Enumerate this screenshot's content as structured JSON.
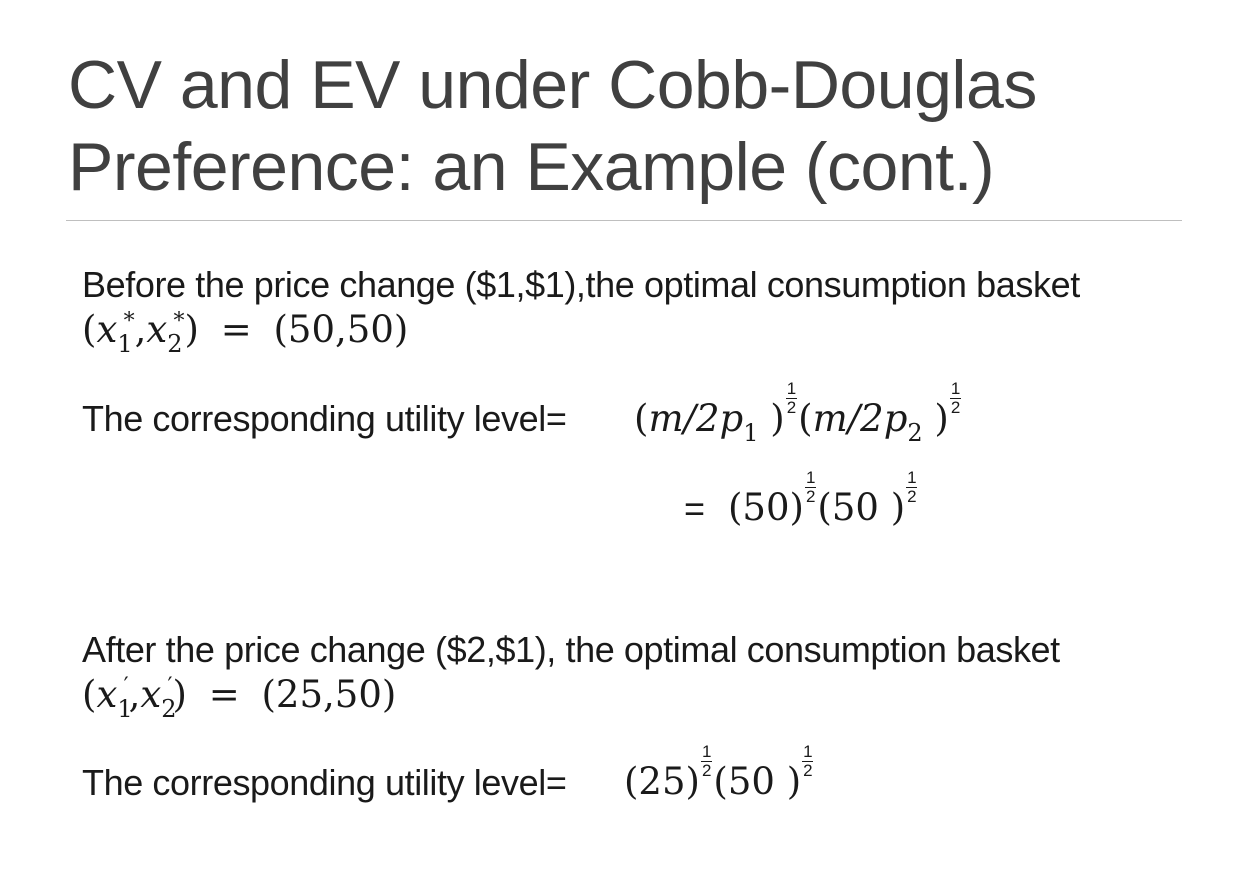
{
  "slide": {
    "title_line1": "CV and EV under Cobb-Douglas",
    "title_line2": "Preference: an Example (cont.)"
  },
  "before": {
    "text": "Before the price change ($1,$1),the optimal consumption basket",
    "basket_value": "(50,50)",
    "utility_label": "The corresponding utility level=",
    "equals": "=",
    "computed_base_1": "(50)",
    "computed_base_2": "(50 )"
  },
  "after": {
    "text": "After the price change ($2,$1), the optimal consumption basket",
    "basket_value": "(25,50)",
    "utility_label": "The corresponding utility level=",
    "computed_base_1": "(25)",
    "computed_base_2": "(50 )"
  },
  "math": {
    "x": "x",
    "star": "*",
    "prime": "′",
    "sub1": "1",
    "sub2": "2",
    "comma": ",",
    "open_paren": "(",
    "close_paren": ")",
    "eq": "=",
    "m_over_2": "m/2",
    "p": "p",
    "close_paren_space": " )",
    "half_num": "1",
    "half_den": "2"
  }
}
